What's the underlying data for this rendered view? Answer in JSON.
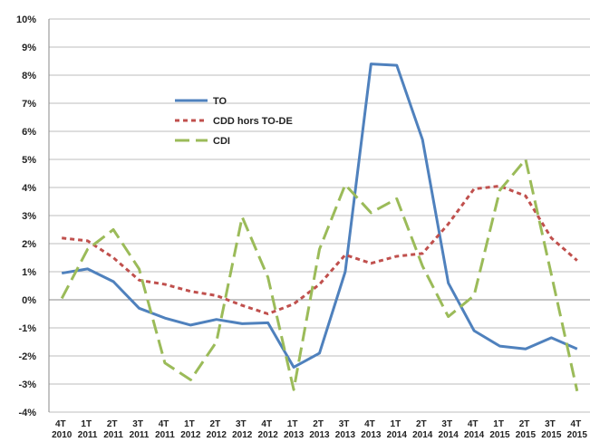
{
  "chart_data": {
    "type": "line",
    "categories": [
      "4T 2010",
      "1T 2011",
      "2T 2011",
      "3T 2011",
      "4T 2011",
      "1T 2012",
      "2T 2012",
      "3T 2012",
      "4T 2012",
      "1T 2013",
      "2T 2013",
      "3T 2013",
      "4T 2013",
      "1T 2014",
      "2T 2014",
      "3T 2014",
      "4T 2014",
      "1T 2015",
      "2T 2015",
      "3T 2015",
      "4T 2015"
    ],
    "series": [
      {
        "name": "TO",
        "color": "#4f81bd",
        "dash": "solid",
        "values": [
          0.95,
          1.1,
          0.65,
          -0.3,
          -0.65,
          -0.9,
          -0.7,
          -0.85,
          -0.82,
          -2.4,
          -1.9,
          1.0,
          8.4,
          8.35,
          5.7,
          0.6,
          -1.1,
          -1.65,
          -1.75,
          -1.35,
          -1.75
        ]
      },
      {
        "name": "CDD hors TO-DE",
        "color": "#c0504d",
        "dash": "short",
        "values": [
          2.2,
          2.1,
          1.5,
          0.7,
          0.55,
          0.3,
          0.15,
          -0.2,
          -0.5,
          -0.15,
          0.55,
          1.6,
          1.3,
          1.55,
          1.65,
          2.7,
          3.95,
          4.05,
          3.7,
          2.2,
          1.4
        ]
      },
      {
        "name": "CDI",
        "color": "#9bbb59",
        "dash": "long",
        "values": [
          0.05,
          1.8,
          2.5,
          1.1,
          -2.25,
          -2.85,
          -1.5,
          2.95,
          0.8,
          -3.2,
          1.8,
          4.1,
          3.1,
          3.6,
          1.2,
          -0.6,
          0.15,
          3.9,
          5.0,
          0.9,
          -3.25
        ]
      }
    ],
    "ylim": [
      -4,
      10
    ],
    "yticks": [
      {
        "value": -4,
        "label": "-4%"
      },
      {
        "value": -3,
        "label": "-3%"
      },
      {
        "value": -2,
        "label": "-2%"
      },
      {
        "value": -1,
        "label": "-1%"
      },
      {
        "value": 0,
        "label": "0%"
      },
      {
        "value": 1,
        "label": "1%"
      },
      {
        "value": 2,
        "label": "2%"
      },
      {
        "value": 3,
        "label": "3%"
      },
      {
        "value": 4,
        "label": "4%"
      },
      {
        "value": 5,
        "label": "5%"
      },
      {
        "value": 6,
        "label": "6%"
      },
      {
        "value": 7,
        "label": "7%"
      },
      {
        "value": 8,
        "label": "8%"
      },
      {
        "value": 9,
        "label": "9%"
      },
      {
        "value": 10,
        "label": "10%"
      }
    ],
    "grid": true,
    "legend": "upper-left"
  }
}
